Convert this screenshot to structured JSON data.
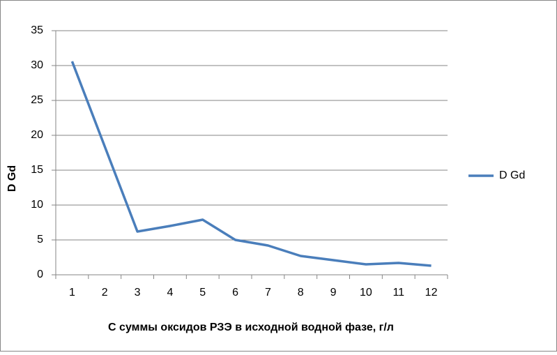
{
  "chart_data": {
    "type": "line",
    "x_label": "С суммы оксидов РЗЭ в исходной водной фазе, г/л",
    "y_label": "D Gd",
    "categories": [
      "1",
      "2",
      "3",
      "4",
      "5",
      "6",
      "7",
      "8",
      "9",
      "10",
      "11",
      "12"
    ],
    "series": [
      {
        "name": "D Gd",
        "color": "#4a7ebb",
        "values": [
          30.6,
          18.4,
          6.2,
          7.0,
          7.9,
          5.0,
          4.2,
          2.7,
          2.1,
          1.5,
          1.7,
          1.3
        ]
      }
    ],
    "ylim": [
      0,
      35
    ],
    "yticks": [
      0,
      5,
      10,
      15,
      20,
      25,
      30,
      35
    ],
    "grid": true,
    "legend": "right"
  }
}
